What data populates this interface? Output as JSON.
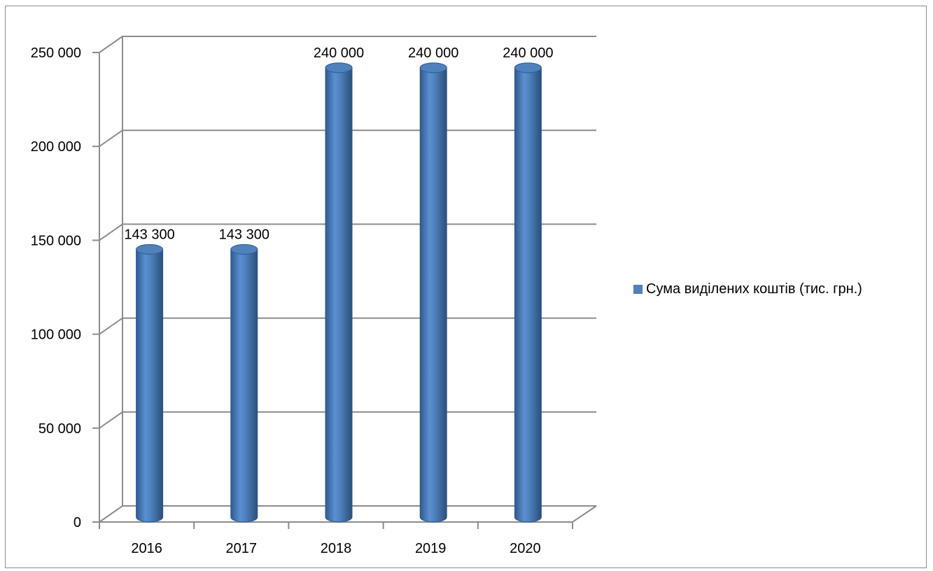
{
  "chart_data": {
    "type": "bar",
    "title": "",
    "xlabel": "",
    "ylabel": "",
    "categories": [
      "2016",
      "2017",
      "2018",
      "2019",
      "2020"
    ],
    "series": [
      {
        "name": "Сума виділених коштів (тис. грн.)",
        "values": [
          143300,
          143300,
          240000,
          240000,
          240000
        ],
        "data_labels": [
          "143 300",
          "143 300",
          "240 000",
          "240 000",
          "240 000"
        ],
        "color": "#4f81bd"
      }
    ],
    "ylim": [
      0,
      250000
    ],
    "y_ticks": [
      {
        "value": 0,
        "label": "0"
      },
      {
        "value": 50000,
        "label": "50 000"
      },
      {
        "value": 100000,
        "label": "100 000"
      },
      {
        "value": 150000,
        "label": "150 000"
      },
      {
        "value": 200000,
        "label": "200 000"
      },
      {
        "value": 250000,
        "label": "250 000"
      }
    ],
    "grid": true,
    "legend_position": "right",
    "style": "3d-cylinder"
  }
}
